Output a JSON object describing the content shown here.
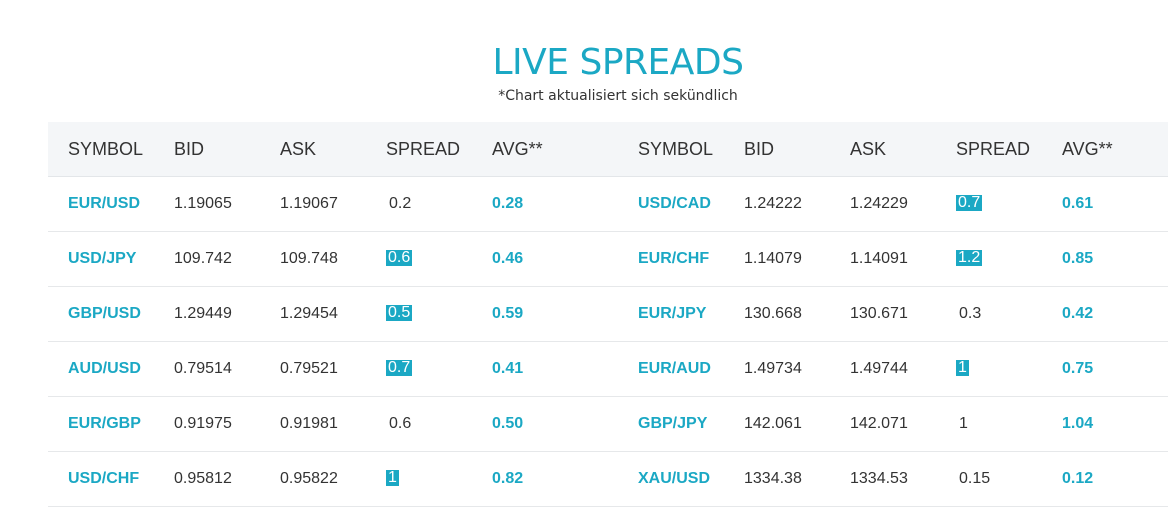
{
  "header": {
    "title": "LIVE SPREADS",
    "subtitle": "*Chart aktualisiert sich sekündlich"
  },
  "columns": [
    "SYMBOL",
    "BID",
    "ASK",
    "SPREAD",
    "AVG**"
  ],
  "colors": {
    "accent": "#1ba8c4",
    "header_bg": "#f4f6f8",
    "text": "#333333"
  },
  "rows": [
    {
      "left": {
        "symbol": "EUR/USD",
        "bid": "1.19065",
        "ask": "1.19067",
        "spread": "0.2",
        "highlight": false,
        "avg": "0.28"
      },
      "right": {
        "symbol": "USD/CAD",
        "bid": "1.24222",
        "ask": "1.24229",
        "spread": "0.7",
        "highlight": true,
        "avg": "0.61"
      }
    },
    {
      "left": {
        "symbol": "USD/JPY",
        "bid": "109.742",
        "ask": "109.748",
        "spread": "0.6",
        "highlight": true,
        "avg": "0.46"
      },
      "right": {
        "symbol": "EUR/CHF",
        "bid": "1.14079",
        "ask": "1.14091",
        "spread": "1.2",
        "highlight": true,
        "avg": "0.85"
      }
    },
    {
      "left": {
        "symbol": "GBP/USD",
        "bid": "1.29449",
        "ask": "1.29454",
        "spread": "0.5",
        "highlight": true,
        "avg": "0.59"
      },
      "right": {
        "symbol": "EUR/JPY",
        "bid": "130.668",
        "ask": "130.671",
        "spread": "0.3",
        "highlight": false,
        "avg": "0.42"
      }
    },
    {
      "left": {
        "symbol": "AUD/USD",
        "bid": "0.79514",
        "ask": "0.79521",
        "spread": "0.7",
        "highlight": true,
        "avg": "0.41"
      },
      "right": {
        "symbol": "EUR/AUD",
        "bid": "1.49734",
        "ask": "1.49744",
        "spread": "1",
        "highlight": true,
        "avg": "0.75"
      }
    },
    {
      "left": {
        "symbol": "EUR/GBP",
        "bid": "0.91975",
        "ask": "0.91981",
        "spread": "0.6",
        "highlight": false,
        "avg": "0.50"
      },
      "right": {
        "symbol": "GBP/JPY",
        "bid": "142.061",
        "ask": "142.071",
        "spread": "1",
        "highlight": false,
        "avg": "1.04"
      }
    },
    {
      "left": {
        "symbol": "USD/CHF",
        "bid": "0.95812",
        "ask": "0.95822",
        "spread": "1",
        "highlight": true,
        "avg": "0.82"
      },
      "right": {
        "symbol": "XAU/USD",
        "bid": "1334.38",
        "ask": "1334.53",
        "spread": "0.15",
        "highlight": false,
        "avg": "0.12"
      }
    }
  ]
}
